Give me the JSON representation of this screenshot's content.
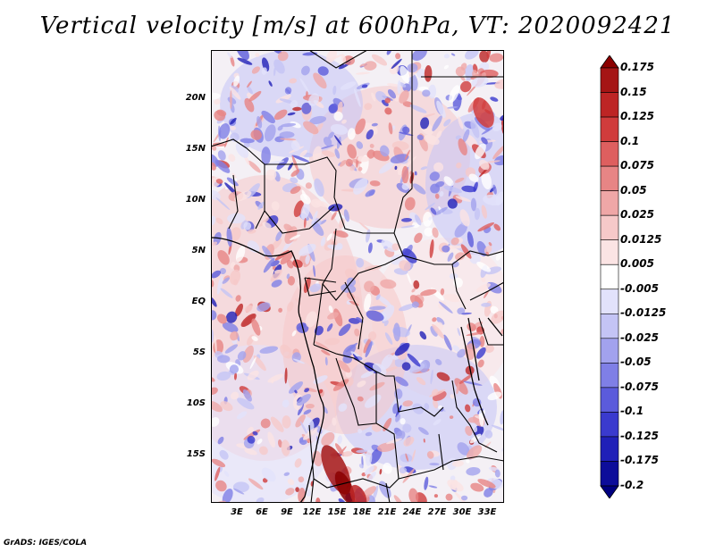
{
  "title": "Vertical velocity [m/s] at 600hPa, VT: 2020092421",
  "footer": "GrADS: IGES/COLA",
  "map": {
    "lat_labels": [
      "20N",
      "15N",
      "10N",
      "5N",
      "EQ",
      "5S",
      "10S",
      "15S"
    ],
    "lon_labels": [
      "3E",
      "6E",
      "9E",
      "12E",
      "15E",
      "18E",
      "21E",
      "24E",
      "27E",
      "30E",
      "33E"
    ]
  },
  "colorbar": {
    "labels": [
      "0.175",
      "0.15",
      "0.125",
      "0.1",
      "0.075",
      "0.05",
      "0.025",
      "0.0125",
      "0.005",
      "-0.005",
      "-0.0125",
      "-0.025",
      "-0.05",
      "-0.075",
      "-0.1",
      "-0.125",
      "-0.175",
      "-0.2"
    ],
    "colors": [
      "#8b0000",
      "#a51515",
      "#bd2525",
      "#d03c3c",
      "#de5f5f",
      "#e78585",
      "#efa7a7",
      "#f6c9c9",
      "#fbe4e4",
      "#ffffff",
      "#e2e2fb",
      "#c4c4f5",
      "#a2a2ee",
      "#7f7fe6",
      "#5b5bdb",
      "#3a3ace",
      "#2020b8",
      "#0d0d9a",
      "#000080"
    ]
  }
}
